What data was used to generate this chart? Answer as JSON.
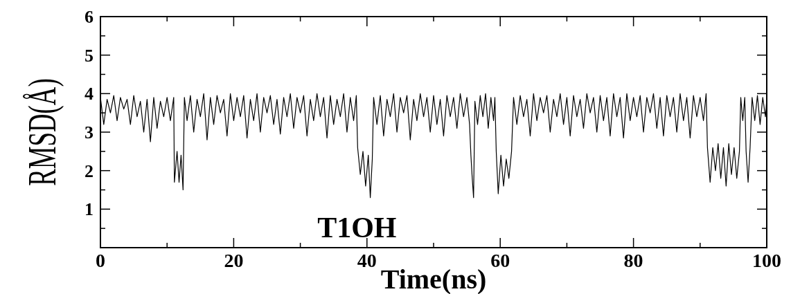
{
  "chart_data": {
    "type": "line",
    "xlabel": "Time(ns)",
    "ylabel": "RMSD(Å)",
    "annotations": [
      "T1OH"
    ],
    "xlim": [
      0,
      100
    ],
    "xticks": [
      0,
      {
        "value": 10,
        "label": null
      },
      20,
      {
        "value": 30,
        "label": null
      },
      40,
      {
        "value": 50,
        "label": null
      },
      60,
      {
        "value": 70,
        "label": null
      },
      80,
      {
        "value": 90,
        "label": null
      },
      100
    ],
    "ylim": [
      0,
      6
    ],
    "yticks": [
      {
        "value": 0.5,
        "label": null
      },
      1,
      {
        "value": 1.5,
        "label": null
      },
      2,
      {
        "value": 2.5,
        "label": null
      },
      3,
      {
        "value": 3.5,
        "label": null
      },
      4,
      {
        "value": 4.5,
        "label": null
      },
      5,
      {
        "value": 5.5,
        "label": null
      },
      6
    ],
    "grid": false,
    "marker": "none",
    "line_style": "solid",
    "series": [
      {
        "color": "#000000",
        "x": [
          0,
          0.5,
          1,
          1.5,
          2,
          2.5,
          3,
          3.5,
          4,
          4.5,
          5,
          5.5,
          6,
          6.5,
          7,
          7.5,
          8,
          8.5,
          9,
          9.5,
          10,
          10.5,
          11,
          11.1,
          11.5,
          11.8,
          12.1,
          12.4,
          12.6,
          13,
          13.5,
          14,
          14.5,
          15,
          15.5,
          16,
          16.5,
          17,
          17.5,
          18,
          18.5,
          19,
          19.5,
          20,
          20.5,
          21,
          21.5,
          22,
          22.5,
          23,
          23.5,
          24,
          24.5,
          25,
          25.5,
          26,
          26.5,
          27,
          27.5,
          28,
          28.5,
          29,
          29.5,
          30,
          30.5,
          31,
          31.5,
          32,
          32.5,
          33,
          33.5,
          34,
          34.5,
          35,
          35.5,
          36,
          36.5,
          37,
          37.5,
          38,
          38.4,
          38.6,
          39,
          39.4,
          39.8,
          40.2,
          40.5,
          40.8,
          41,
          41.5,
          42,
          42.5,
          43,
          43.5,
          44,
          44.5,
          45,
          45.5,
          46,
          46.5,
          47,
          47.5,
          48,
          48.5,
          49,
          49.5,
          50,
          50.5,
          51,
          51.5,
          52,
          52.5,
          53,
          53.5,
          54,
          54.5,
          55,
          55.4,
          55.6,
          55.8,
          56,
          56.2,
          56.6,
          57,
          57.4,
          57.8,
          58.2,
          58.6,
          59,
          59.2,
          59.4,
          59.7,
          60.1,
          60.5,
          60.9,
          61.3,
          61.7,
          62,
          62.5,
          63,
          63.5,
          64,
          64.5,
          65,
          65.5,
          66,
          66.5,
          67,
          67.5,
          68,
          68.5,
          69,
          69.5,
          70,
          70.5,
          71,
          71.5,
          72,
          72.5,
          73,
          73.5,
          74,
          74.5,
          75,
          75.5,
          76,
          76.5,
          77,
          77.5,
          78,
          78.5,
          79,
          79.5,
          80,
          80.5,
          81,
          81.5,
          82,
          82.5,
          83,
          83.5,
          84,
          84.5,
          85,
          85.5,
          86,
          86.5,
          87,
          87.5,
          88,
          88.5,
          89,
          89.5,
          90,
          90.5,
          90.9,
          91.1,
          91.5,
          91.9,
          92.3,
          92.7,
          93.1,
          93.5,
          93.9,
          94.3,
          94.7,
          95.1,
          95.5,
          95.9,
          96.1,
          96.4,
          96.7,
          96.9,
          97.2,
          97.5,
          97.8,
          98.2,
          98.6,
          99,
          99.4,
          99.8,
          100
        ],
        "values": [
          3.9,
          3.2,
          3.85,
          3.5,
          3.95,
          3.3,
          3.9,
          3.6,
          3.85,
          3.2,
          3.95,
          3.4,
          3.8,
          3.0,
          3.85,
          2.75,
          3.9,
          3.1,
          3.8,
          3.4,
          3.9,
          3.3,
          3.9,
          1.7,
          2.5,
          1.7,
          2.4,
          1.5,
          3.9,
          3.3,
          3.95,
          3.0,
          3.85,
          3.4,
          4.0,
          2.8,
          3.9,
          3.2,
          3.95,
          3.5,
          3.85,
          2.9,
          4.0,
          3.3,
          3.9,
          3.4,
          3.95,
          2.85,
          3.85,
          3.3,
          4.0,
          3.0,
          3.9,
          3.5,
          3.95,
          3.2,
          3.85,
          2.95,
          3.9,
          3.4,
          4.0,
          3.1,
          3.9,
          3.5,
          3.95,
          2.9,
          3.85,
          3.3,
          4.0,
          3.4,
          3.9,
          2.85,
          3.95,
          3.2,
          3.85,
          3.4,
          4.0,
          3.0,
          3.9,
          3.3,
          3.95,
          2.6,
          1.9,
          2.5,
          1.6,
          2.4,
          1.3,
          2.3,
          3.9,
          3.2,
          3.95,
          2.9,
          3.85,
          3.4,
          4.0,
          3.0,
          3.9,
          3.5,
          3.95,
          2.8,
          3.85,
          3.3,
          4.0,
          3.4,
          3.9,
          3.0,
          3.95,
          3.2,
          3.85,
          2.9,
          3.95,
          3.4,
          3.9,
          3.1,
          4.0,
          3.4,
          3.9,
          3.2,
          2.4,
          1.8,
          1.3,
          3.8,
          3.2,
          3.95,
          3.4,
          4.0,
          3.1,
          3.9,
          3.3,
          3.9,
          2.5,
          1.4,
          2.4,
          1.6,
          2.3,
          1.8,
          2.5,
          3.9,
          3.2,
          3.95,
          3.4,
          3.85,
          2.9,
          4.0,
          3.3,
          3.9,
          3.5,
          3.95,
          3.0,
          3.85,
          3.4,
          4.0,
          3.2,
          3.9,
          2.9,
          3.95,
          3.4,
          3.85,
          3.1,
          4.0,
          3.5,
          3.9,
          3.0,
          3.95,
          3.3,
          3.9,
          2.9,
          4.0,
          3.4,
          3.9,
          2.85,
          4.0,
          3.3,
          3.9,
          3.4,
          3.95,
          3.0,
          3.9,
          3.5,
          4.0,
          3.1,
          3.9,
          2.9,
          3.95,
          3.4,
          3.9,
          3.0,
          4.0,
          3.3,
          3.9,
          2.85,
          3.95,
          3.4,
          3.9,
          3.3,
          4.0,
          2.6,
          1.7,
          2.6,
          2.0,
          2.7,
          1.8,
          2.6,
          1.6,
          2.7,
          1.9,
          2.6,
          1.8,
          2.5,
          3.9,
          3.3,
          3.9,
          2.5,
          1.7,
          2.6,
          3.9,
          3.3,
          3.95,
          3.2,
          3.9,
          3.4,
          3.85
        ]
      }
    ]
  }
}
